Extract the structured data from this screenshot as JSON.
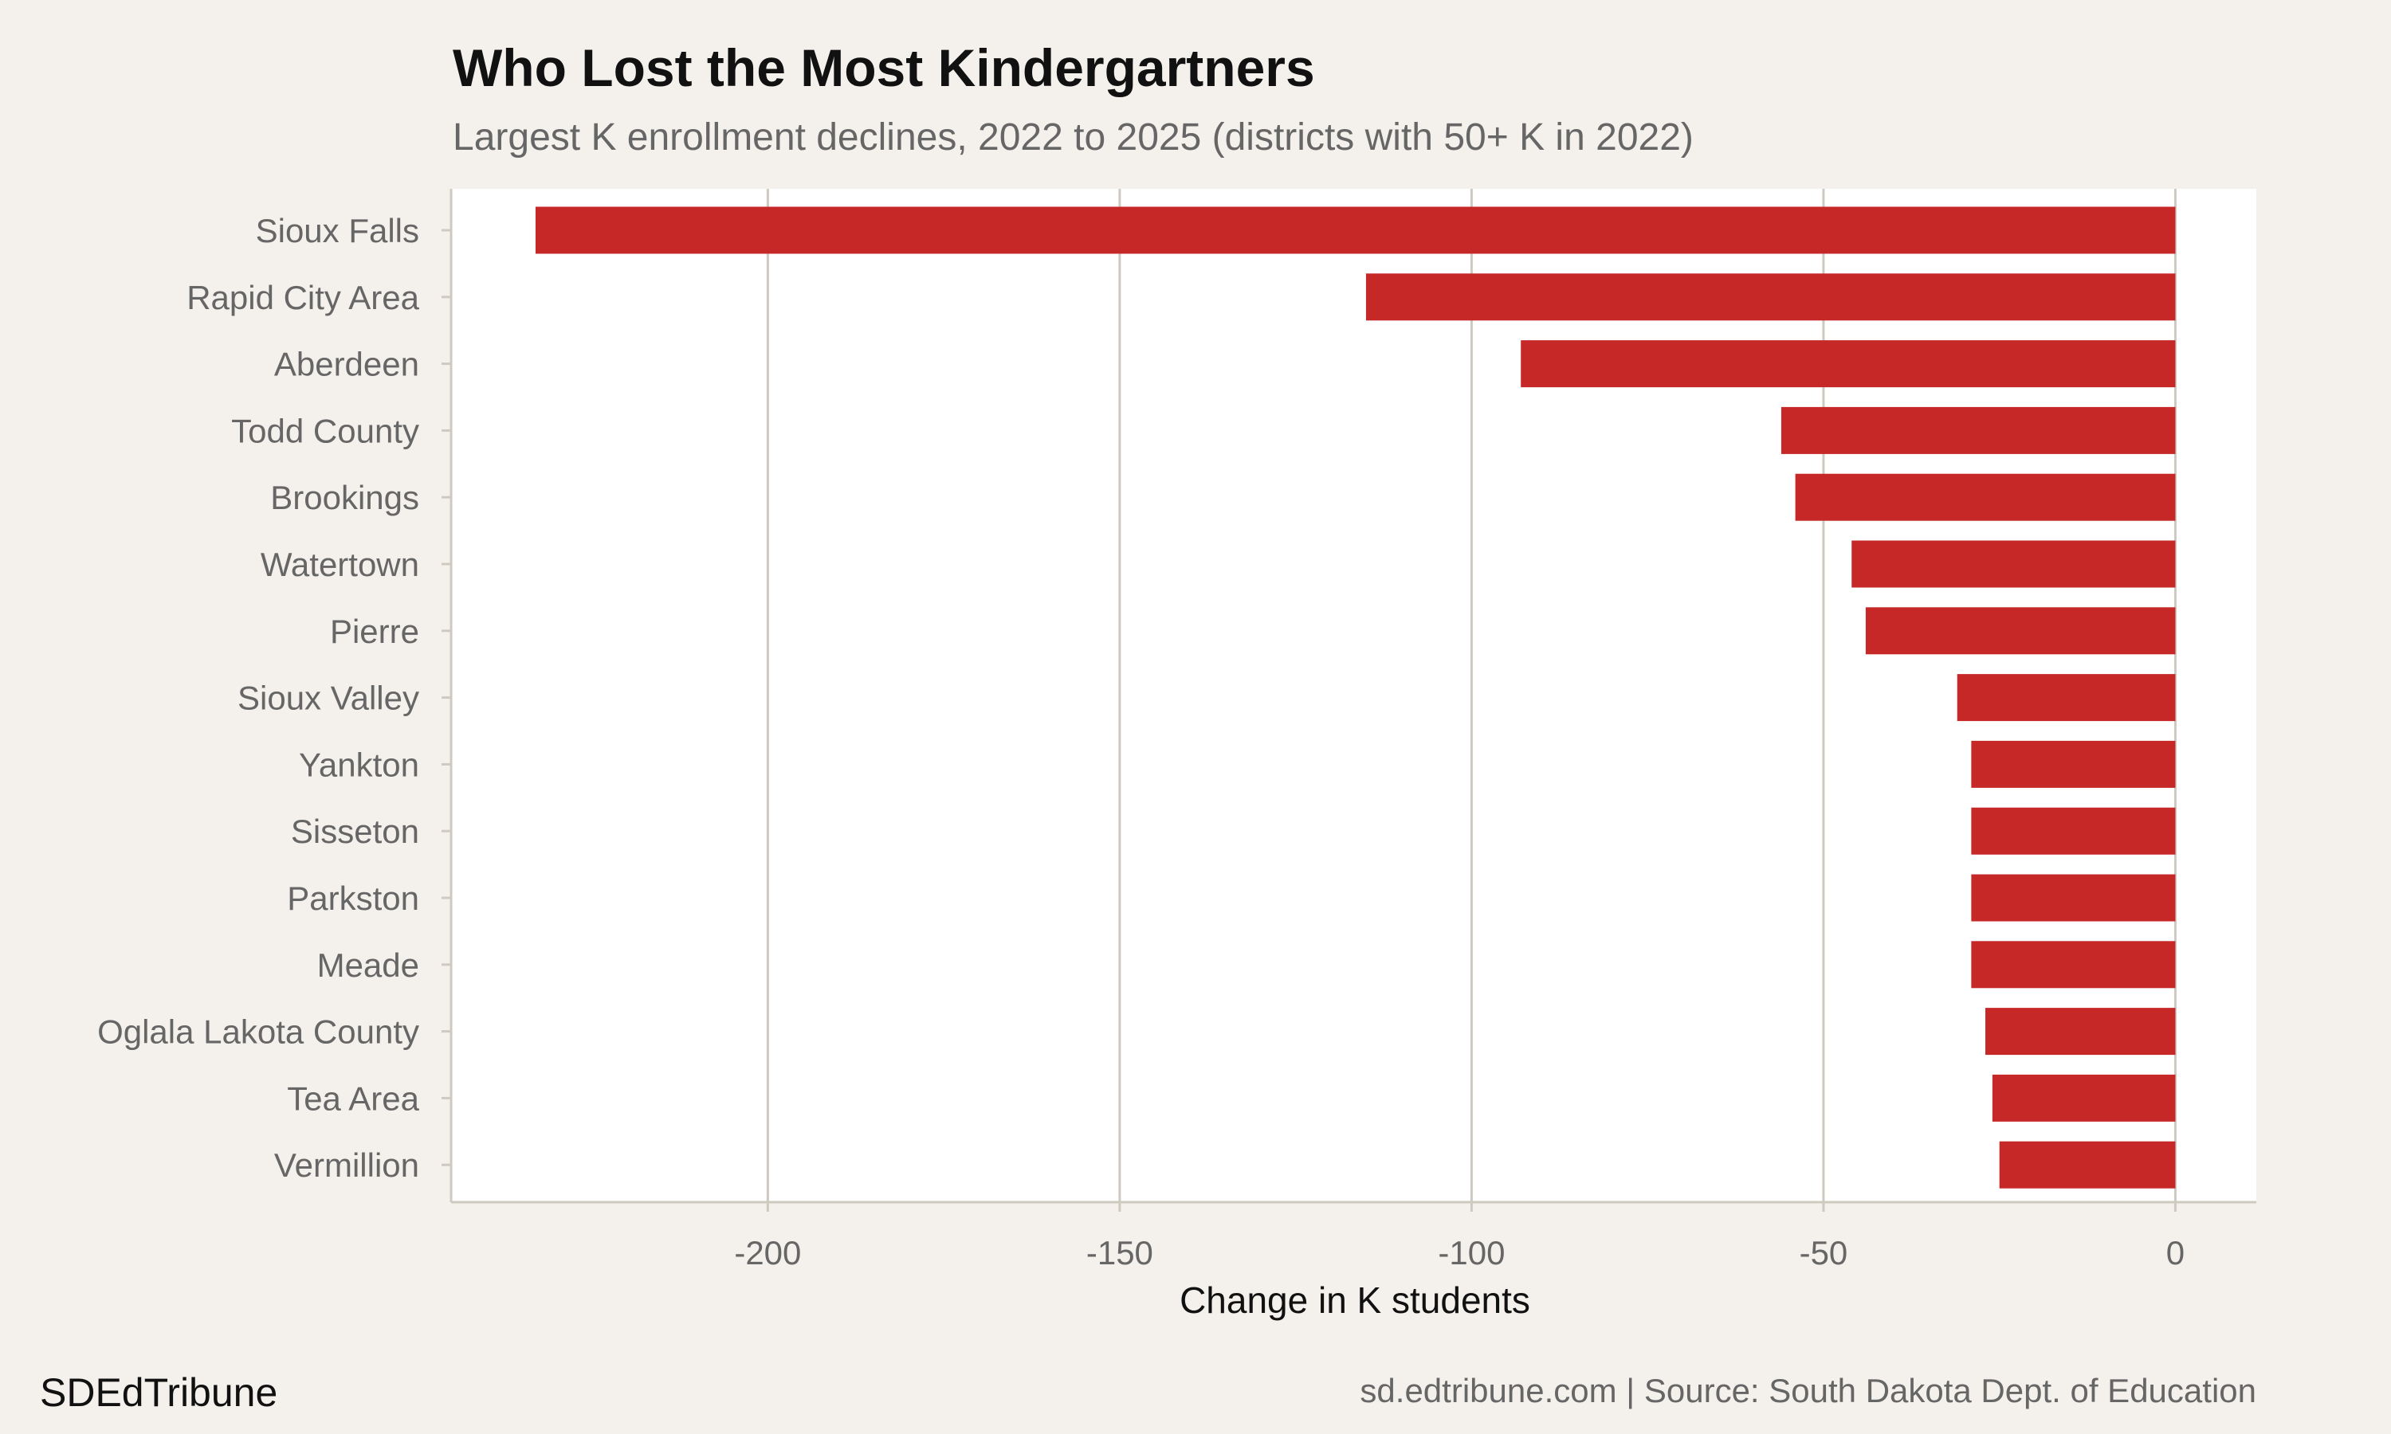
{
  "chart_data": {
    "type": "bar",
    "orientation": "horizontal",
    "title": "Who Lost the Most Kindergartners",
    "subtitle": "Largest K enrollment declines, 2022 to 2025 (districts with 50+ K in 2022)",
    "xlabel": "Change in K students",
    "ylabel": "",
    "categories": [
      "Sioux Falls",
      "Rapid City Area",
      "Aberdeen",
      "Todd County",
      "Brookings",
      "Watertown",
      "Pierre",
      "Sioux Valley",
      "Yankton",
      "Sisseton",
      "Parkston",
      "Meade",
      "Oglala Lakota County",
      "Tea Area",
      "Vermillion"
    ],
    "values": [
      -233,
      -115,
      -93,
      -56,
      -54,
      -46,
      -44,
      -31,
      -29,
      -29,
      -29,
      -29,
      -27,
      -26,
      -25
    ],
    "xlim": [
      -245,
      11.5
    ],
    "xticks": [
      -200,
      -150,
      -100,
      -50,
      0
    ],
    "xtick_labels": [
      "-200",
      "-150",
      "-100",
      "-50",
      "0"
    ],
    "grid": "vertical",
    "bar_color": "#c62828",
    "background": "#f4f1ec",
    "panel_background": "#ffffff",
    "grid_color": "#cfcac0"
  },
  "footer": {
    "brand": "SDEdTribune",
    "source": "sd.edtribune.com | Source: South Dakota Dept. of Education"
  }
}
